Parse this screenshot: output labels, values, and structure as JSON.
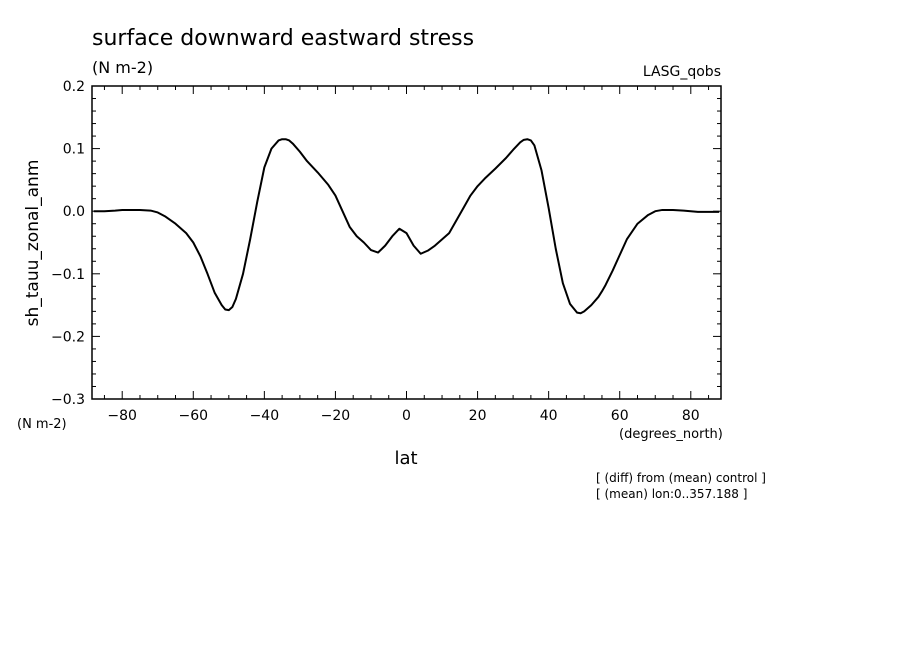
{
  "chart_data": {
    "type": "line",
    "title": "surface downward eastward stress",
    "subtitle": "(N m-2)",
    "dataset_label": "LASG_qobs",
    "ylabel": "sh_tauu_zonal_anm",
    "yunits": "(N m-2)",
    "xlabel": "lat",
    "xunits": "(degrees_north)",
    "notes": [
      "[ (diff) from (mean) control ]",
      "[ (mean) lon:0..357.188 ]"
    ],
    "xlim": [
      -88.5,
      88.5
    ],
    "ylim": [
      -0.3,
      0.2
    ],
    "x_ticks": [
      -80,
      -60,
      -40,
      -20,
      0,
      20,
      40,
      60,
      80
    ],
    "x_tick_labels": [
      "−80",
      "−60",
      "−40",
      "−20",
      "0",
      "20",
      "40",
      "60",
      "80"
    ],
    "y_ticks": [
      -0.3,
      -0.2,
      -0.1,
      0.0,
      0.1,
      0.2
    ],
    "y_tick_labels": [
      "−0.3",
      "−0.2",
      "−0.1",
      "0.0",
      "0.1",
      "0.2"
    ],
    "grid": false,
    "series_color": "#000000",
    "x": [
      -88,
      -85,
      -82,
      -80,
      -78,
      -75,
      -72,
      -70,
      -68,
      -65,
      -62,
      -60,
      -58,
      -56,
      -55,
      -54,
      -52,
      -51,
      -50,
      -49,
      -48,
      -46,
      -44,
      -42,
      -40,
      -38,
      -36,
      -35,
      -34,
      -33,
      -32,
      -30,
      -28,
      -25,
      -22,
      -20,
      -18,
      -16,
      -14,
      -12,
      -10,
      -8,
      -6,
      -4,
      -2,
      0,
      2,
      4,
      6,
      8,
      10,
      12,
      14,
      16,
      18,
      20,
      22,
      25,
      28,
      30,
      32,
      33,
      34,
      35,
      36,
      38,
      40,
      42,
      44,
      46,
      48,
      49,
      50,
      51,
      52,
      54,
      55,
      56,
      58,
      60,
      62,
      65,
      68,
      70,
      72,
      75,
      78,
      80,
      82,
      85,
      88
    ],
    "y": [
      0.0,
      0.0,
      0.001,
      0.002,
      0.002,
      0.002,
      0.001,
      -0.002,
      -0.008,
      -0.02,
      -0.035,
      -0.05,
      -0.072,
      -0.1,
      -0.115,
      -0.13,
      -0.15,
      -0.157,
      -0.158,
      -0.153,
      -0.14,
      -0.1,
      -0.045,
      0.015,
      0.07,
      0.1,
      0.113,
      0.115,
      0.115,
      0.113,
      0.108,
      0.095,
      0.08,
      0.062,
      0.042,
      0.025,
      0.0,
      -0.025,
      -0.04,
      -0.05,
      -0.062,
      -0.066,
      -0.055,
      -0.04,
      -0.028,
      -0.035,
      -0.055,
      -0.068,
      -0.063,
      -0.055,
      -0.045,
      -0.035,
      -0.015,
      0.005,
      0.025,
      0.04,
      0.052,
      0.068,
      0.085,
      0.098,
      0.11,
      0.114,
      0.115,
      0.113,
      0.105,
      0.065,
      0.005,
      -0.06,
      -0.115,
      -0.148,
      -0.162,
      -0.163,
      -0.16,
      -0.155,
      -0.15,
      -0.137,
      -0.128,
      -0.118,
      -0.095,
      -0.07,
      -0.045,
      -0.02,
      -0.006,
      0.0,
      0.002,
      0.002,
      0.001,
      0.0,
      -0.001,
      -0.001,
      -0.001
    ]
  }
}
